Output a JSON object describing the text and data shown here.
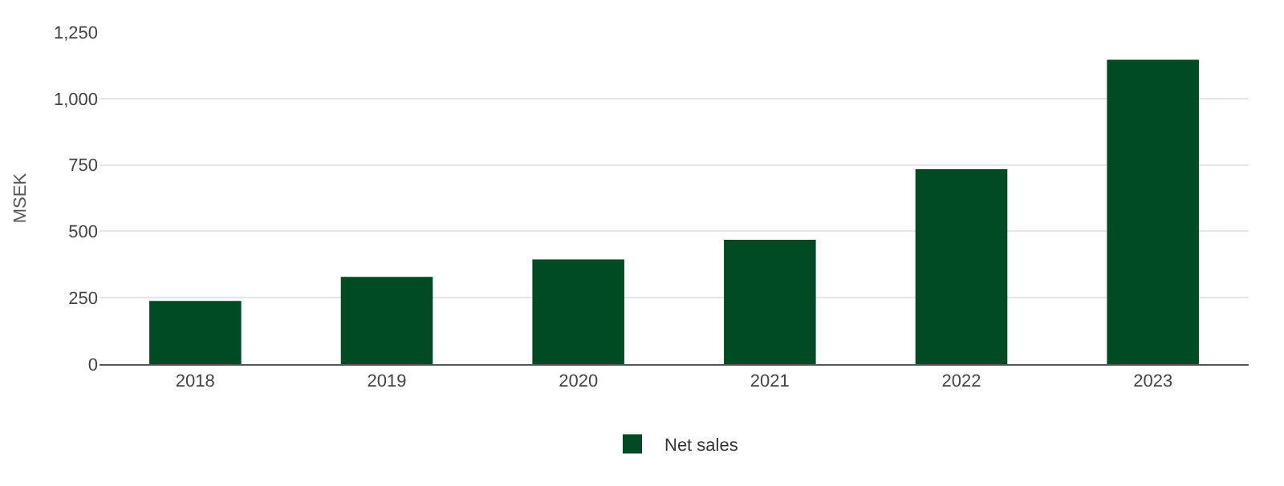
{
  "chart_data": {
    "type": "bar",
    "ylabel": "MSEK",
    "categories": [
      "2018",
      "2019",
      "2020",
      "2021",
      "2022",
      "2023"
    ],
    "series": [
      {
        "name": "Net sales",
        "color": "#004b23",
        "values": [
          238,
          328,
          394,
          468,
          734,
          1146
        ]
      }
    ],
    "ylim": [
      0,
      1250
    ],
    "yticks": [
      0,
      {
        "value": 250,
        "label": "250"
      },
      {
        "value": 500,
        "label": "500"
      },
      {
        "value": 750,
        "label": "750"
      },
      {
        "value": 1000,
        "label": "1,000"
      },
      {
        "value": 1250,
        "label": "1,250"
      }
    ],
    "grid": "y",
    "legend": "bottom"
  }
}
